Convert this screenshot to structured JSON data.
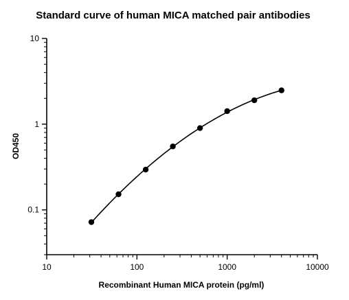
{
  "chart_data": {
    "type": "scatter",
    "title": "Standard curve of human MICA matched pair antibodies",
    "xlabel": "Recombinant Human MICA protein (pg/ml)",
    "ylabel": "OD450",
    "x_scale": "log",
    "y_scale": "log",
    "xlim": [
      10,
      10000
    ],
    "ylim": [
      0.03,
      10
    ],
    "x_ticks": [
      10,
      100,
      1000,
      10000
    ],
    "x_tick_labels": [
      "10",
      "100",
      "1000",
      "10000"
    ],
    "y_ticks": [
      0.1,
      1,
      10
    ],
    "y_tick_labels": [
      "0.1",
      "1",
      "10"
    ],
    "grid": false,
    "marker_color": "#000000",
    "line_color": "#000000",
    "fit_curve": true,
    "series": [
      {
        "x": [
          31.25,
          62.5,
          125,
          250,
          500,
          1000,
          2000,
          4000
        ],
        "y": [
          0.072,
          0.152,
          0.295,
          0.55,
          0.9,
          1.42,
          1.9,
          2.48
        ]
      }
    ]
  }
}
